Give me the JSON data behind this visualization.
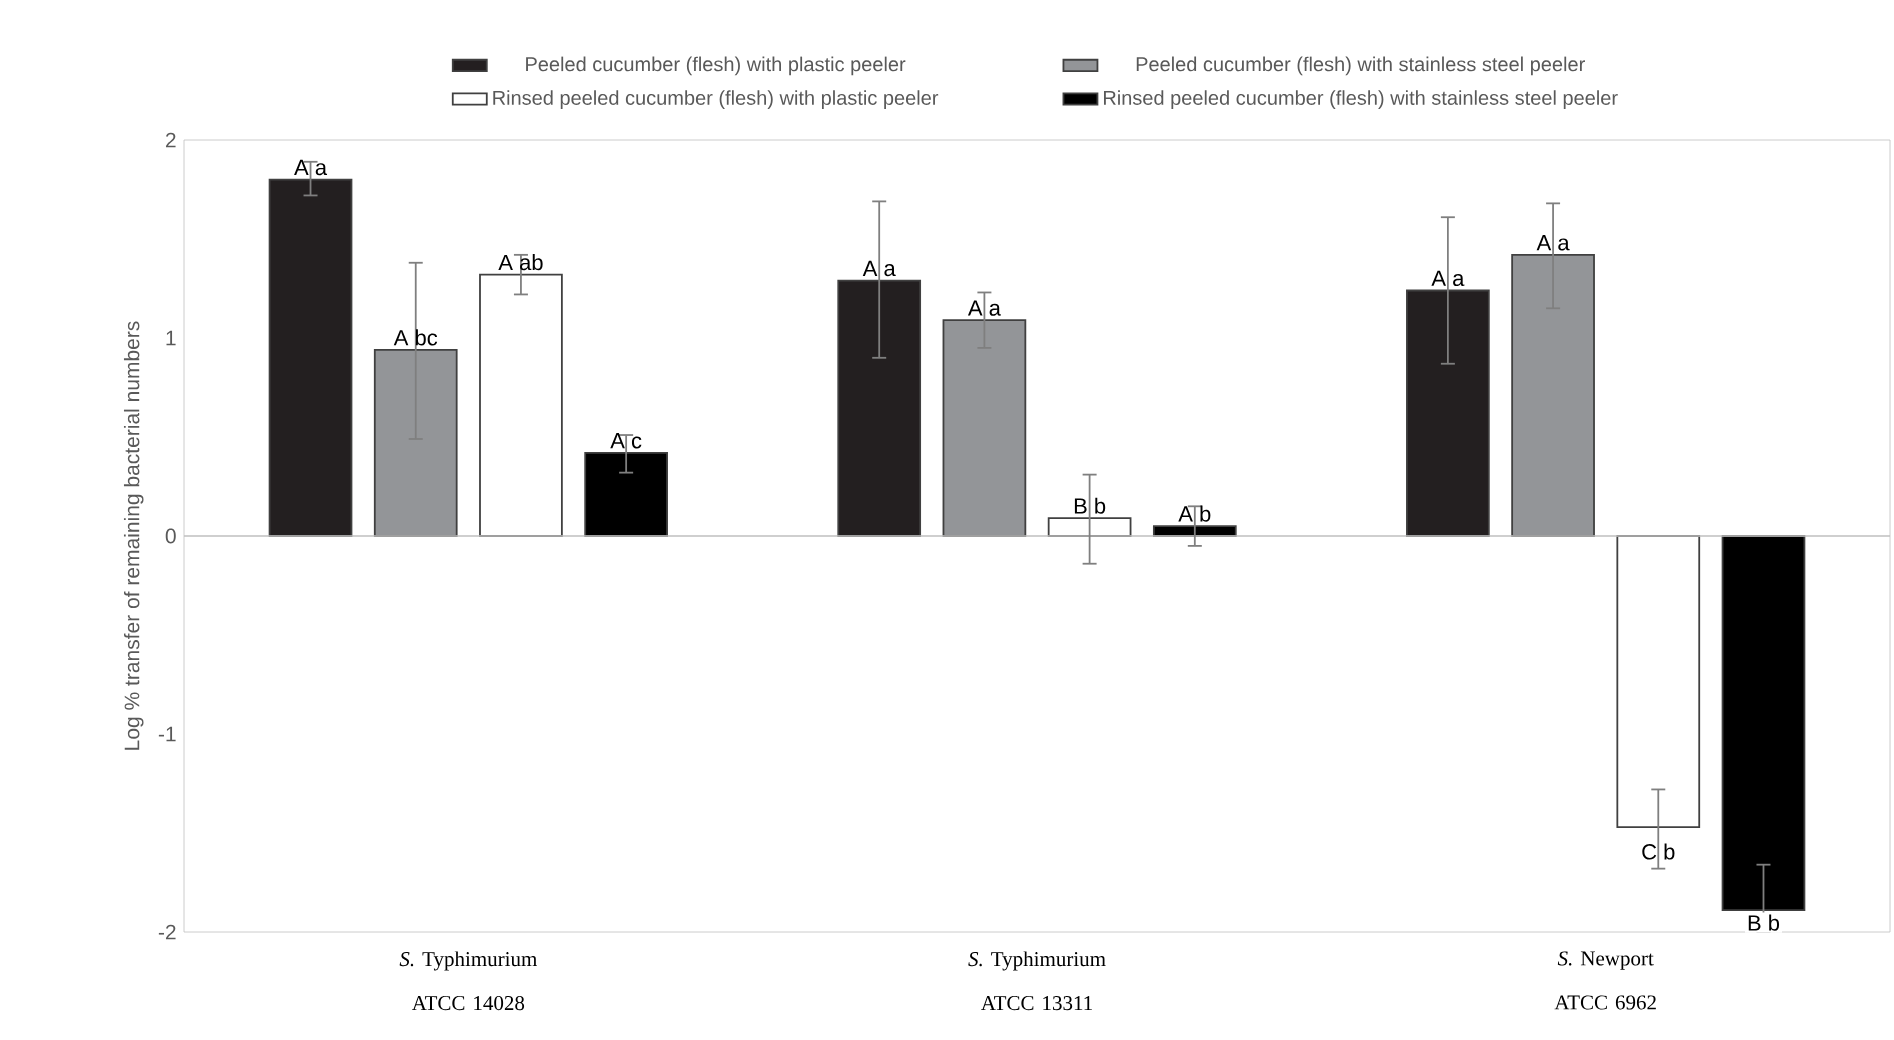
{
  "chart_data": {
    "type": "bar",
    "ylabel": "Log % transfer of remaining bacterial numbers",
    "categories": [
      "*S.* Typhimurium ATCC 14028",
      "*S.* Typhimurium ATCC 13311",
      "*S.* Newport ATCC 6962"
    ],
    "ylim": [
      -2,
      2
    ],
    "yticks": [
      -2,
      -1,
      0,
      1,
      2
    ],
    "legend": "top",
    "series": [
      {
        "name": "Peeled cucumber (flesh) with plastic peeler",
        "color": "#231f20",
        "values": [
          1.8,
          1.29,
          1.24
        ],
        "errors": [
          [
            1.72,
            1.89
          ],
          [
            0.9,
            1.69
          ],
          [
            0.87,
            1.61
          ]
        ],
        "value_labels": [
          "A a",
          "A a",
          "A a"
        ]
      },
      {
        "name": "Peeled cucumber (flesh) with stainless steel peeler",
        "color": "#939598",
        "values": [
          0.94,
          1.09,
          1.42
        ],
        "errors": [
          [
            0.49,
            1.38
          ],
          [
            0.95,
            1.23
          ],
          [
            1.15,
            1.68
          ]
        ],
        "value_labels": [
          "A bc",
          "A a",
          "A a"
        ]
      },
      {
        "name": "Rinsed peeled cucumber (flesh) with plastic peeler",
        "color": "#ffffff",
        "values": [
          1.32,
          0.09,
          -1.47
        ],
        "errors": [
          [
            1.22,
            1.42
          ],
          [
            -0.14,
            0.31
          ],
          [
            -1.68,
            -1.28
          ]
        ],
        "value_labels": [
          "A ab",
          "B b",
          "C b"
        ]
      },
      {
        "name": "Rinsed peeled cucumber (flesh) with stainless steel peeler",
        "color": "#000000",
        "values": [
          0.42,
          0.05,
          -1.89
        ],
        "errors": [
          [
            0.32,
            0.51
          ],
          [
            -0.05,
            0.15
          ],
          [
            -2.0,
            -1.66
          ]
        ],
        "value_labels": [
          "A c",
          "A b",
          "B b"
        ]
      }
    ]
  }
}
